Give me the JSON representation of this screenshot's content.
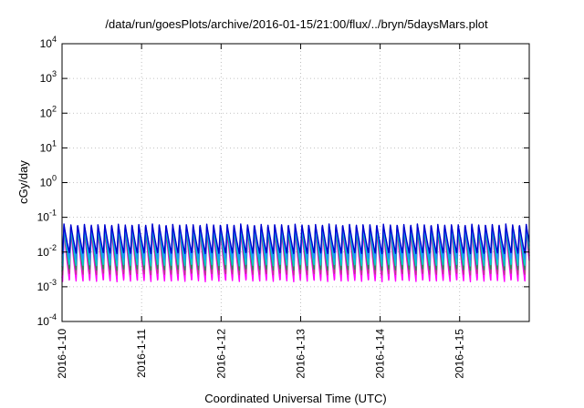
{
  "chart_data": {
    "type": "line",
    "title": "/data/run/goesPlots/archive/2016-01-15/21:00/flux/../bryn/5daysMars.plot",
    "xlabel": "Coordinated Universal Time (UTC)",
    "ylabel": "cGy/day",
    "y_scale": "log",
    "ylim": [
      0.0001,
      10000
    ],
    "y_ticks": [
      {
        "base": "10",
        "exp": "-4",
        "value": 0.0001
      },
      {
        "base": "10",
        "exp": "-3",
        "value": 0.001
      },
      {
        "base": "10",
        "exp": "-2",
        "value": 0.01
      },
      {
        "base": "10",
        "exp": "-1",
        "value": 0.1
      },
      {
        "base": "10",
        "exp": "0",
        "value": 1
      },
      {
        "base": "10",
        "exp": "1",
        "value": 10
      },
      {
        "base": "10",
        "exp": "2",
        "value": 100
      },
      {
        "base": "10",
        "exp": "3",
        "value": 1000
      },
      {
        "base": "10",
        "exp": "4",
        "value": 10000
      }
    ],
    "xlim": [
      "2016-01-10T00:00",
      "2016-01-15T21:00"
    ],
    "x_ticks": [
      "2016-1-10",
      "2016-1-11",
      "2016-1-12",
      "2016-1-13",
      "2016-1-14",
      "2016-1-15"
    ],
    "grid": true,
    "oscillation": {
      "cycles_per_day": 11.7,
      "first_peak": "2016-01-10T00:35"
    },
    "series": [
      {
        "color": "#ff00ff",
        "peak": 0.045,
        "trough": 0.0014
      },
      {
        "color": "#bd3a8c",
        "peak": 0.05,
        "trough": 0.0022
      },
      {
        "color": "#2e8b57",
        "peak": 0.052,
        "trough": 0.003
      },
      {
        "color": "#00ced1",
        "peak": 0.058,
        "trough": 0.004
      },
      {
        "color": "#1e90ff",
        "peak": 0.062,
        "trough": 0.006
      },
      {
        "color": "#0000cd",
        "peak": 0.064,
        "trough": 0.009
      }
    ]
  }
}
